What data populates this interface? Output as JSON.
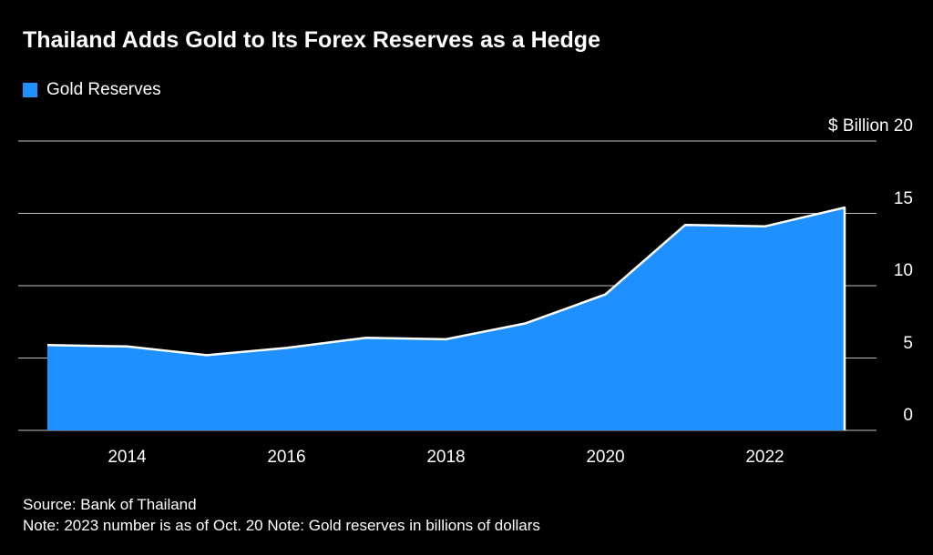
{
  "title": "Thailand Adds Gold to Its Forex Reserves as a Hedge",
  "legend": {
    "label": "Gold Reserves"
  },
  "axis": {
    "unit_label": "$ Billion"
  },
  "footer": {
    "source": "Source: Bank of Thailand",
    "note": "Note: 2023 number is as of Oct. 20 Note: Gold reserves in billions of dollars"
  },
  "colors": {
    "background": "#000000",
    "area": "#1e90ff",
    "edge": "#ffffff",
    "grid": "#bfbfbf",
    "text": "#ffffff"
  },
  "chart_data": {
    "type": "area",
    "title": "Thailand Adds Gold to Its Forex Reserves as a Hedge",
    "series_name": "Gold Reserves",
    "x": [
      2013,
      2014,
      2015,
      2016,
      2017,
      2018,
      2019,
      2020,
      2021,
      2022,
      2023
    ],
    "values": [
      5.9,
      5.8,
      5.2,
      5.7,
      6.4,
      6.3,
      7.4,
      9.4,
      14.2,
      14.1,
      15.4
    ],
    "ylabel": "$ Billion",
    "ylim": [
      0,
      20
    ],
    "yticks": [
      20,
      15,
      10,
      5,
      0
    ],
    "xticks": [
      2014,
      2016,
      2018,
      2020,
      2022
    ],
    "grid": "horizontal",
    "legend_position": "top-left",
    "tick_label_side": "right",
    "source": "Bank of Thailand",
    "notes": [
      "2023 number is as of Oct. 20",
      "Gold reserves in billions of dollars"
    ]
  }
}
